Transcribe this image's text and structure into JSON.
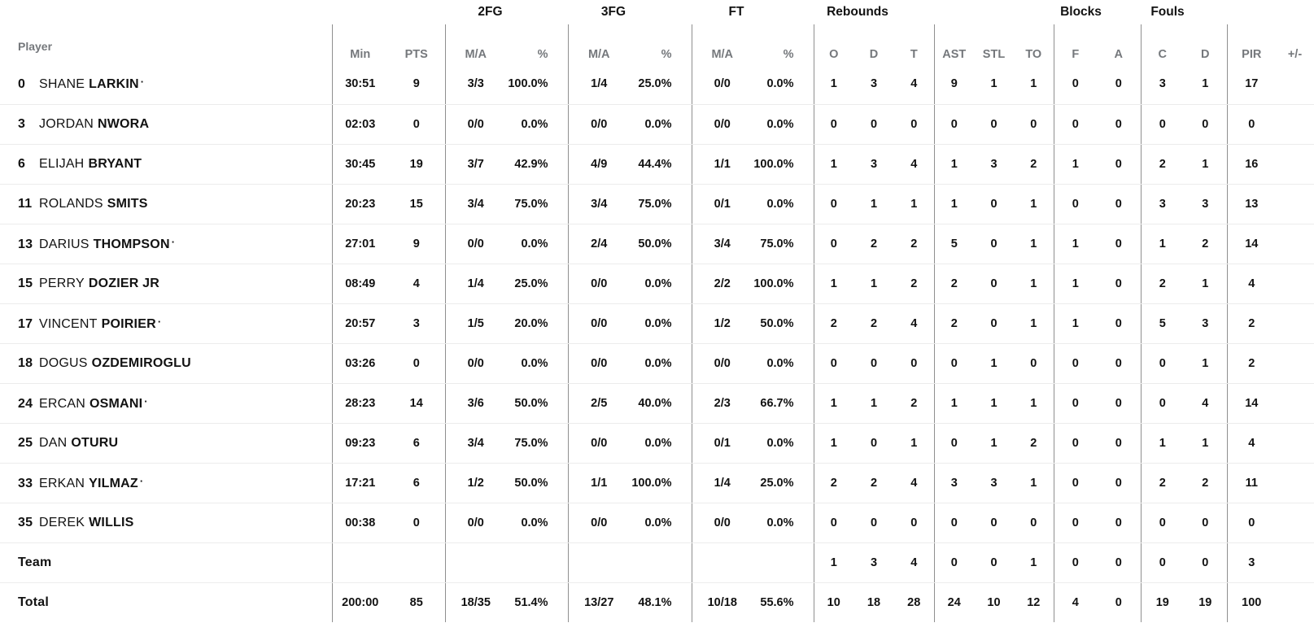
{
  "colors": {
    "text": "#121212",
    "muted_header": "#75787c",
    "group_divider": "#8f8f8f",
    "row_separator": "#ececec",
    "background": "#ffffff"
  },
  "header": {
    "player": "Player",
    "groups": {
      "fg2": "2FG",
      "fg3": "3FG",
      "ft": "FT",
      "rebounds": "Rebounds",
      "blocks": "Blocks",
      "fouls": "Fouls"
    },
    "cols": {
      "min": "Min",
      "pts": "PTS",
      "ma": "M/A",
      "pct": "%",
      "reb_o": "O",
      "reb_d": "D",
      "reb_t": "T",
      "ast": "AST",
      "stl": "STL",
      "to": "TO",
      "blk_f": "F",
      "blk_a": "A",
      "foul_c": "C",
      "foul_d": "D",
      "pir": "PIR",
      "plus_minus": "+/-"
    }
  },
  "rows": [
    {
      "number": "0",
      "first": "SHANE",
      "last": "LARKIN",
      "starter": true,
      "min": "30:51",
      "pts": "9",
      "fg2_ma": "3/3",
      "fg2_pct": "100.0%",
      "fg3_ma": "1/4",
      "fg3_pct": "25.0%",
      "ft_ma": "0/0",
      "ft_pct": "0.0%",
      "reb_o": "1",
      "reb_d": "3",
      "reb_t": "4",
      "ast": "9",
      "stl": "1",
      "to": "1",
      "blk_f": "0",
      "blk_a": "0",
      "foul_c": "3",
      "foul_d": "1",
      "pir": "17",
      "plus_minus": ""
    },
    {
      "number": "3",
      "first": "JORDAN",
      "last": "NWORA",
      "starter": false,
      "min": "02:03",
      "pts": "0",
      "fg2_ma": "0/0",
      "fg2_pct": "0.0%",
      "fg3_ma": "0/0",
      "fg3_pct": "0.0%",
      "ft_ma": "0/0",
      "ft_pct": "0.0%",
      "reb_o": "0",
      "reb_d": "0",
      "reb_t": "0",
      "ast": "0",
      "stl": "0",
      "to": "0",
      "blk_f": "0",
      "blk_a": "0",
      "foul_c": "0",
      "foul_d": "0",
      "pir": "0",
      "plus_minus": ""
    },
    {
      "number": "6",
      "first": "ELIJAH",
      "last": "BRYANT",
      "starter": false,
      "min": "30:45",
      "pts": "19",
      "fg2_ma": "3/7",
      "fg2_pct": "42.9%",
      "fg3_ma": "4/9",
      "fg3_pct": "44.4%",
      "ft_ma": "1/1",
      "ft_pct": "100.0%",
      "reb_o": "1",
      "reb_d": "3",
      "reb_t": "4",
      "ast": "1",
      "stl": "3",
      "to": "2",
      "blk_f": "1",
      "blk_a": "0",
      "foul_c": "2",
      "foul_d": "1",
      "pir": "16",
      "plus_minus": ""
    },
    {
      "number": "11",
      "first": "ROLANDS",
      "last": "SMITS",
      "starter": false,
      "min": "20:23",
      "pts": "15",
      "fg2_ma": "3/4",
      "fg2_pct": "75.0%",
      "fg3_ma": "3/4",
      "fg3_pct": "75.0%",
      "ft_ma": "0/1",
      "ft_pct": "0.0%",
      "reb_o": "0",
      "reb_d": "1",
      "reb_t": "1",
      "ast": "1",
      "stl": "0",
      "to": "1",
      "blk_f": "0",
      "blk_a": "0",
      "foul_c": "3",
      "foul_d": "3",
      "pir": "13",
      "plus_minus": ""
    },
    {
      "number": "13",
      "first": "DARIUS",
      "last": "THOMPSON",
      "starter": true,
      "min": "27:01",
      "pts": "9",
      "fg2_ma": "0/0",
      "fg2_pct": "0.0%",
      "fg3_ma": "2/4",
      "fg3_pct": "50.0%",
      "ft_ma": "3/4",
      "ft_pct": "75.0%",
      "reb_o": "0",
      "reb_d": "2",
      "reb_t": "2",
      "ast": "5",
      "stl": "0",
      "to": "1",
      "blk_f": "1",
      "blk_a": "0",
      "foul_c": "1",
      "foul_d": "2",
      "pir": "14",
      "plus_minus": ""
    },
    {
      "number": "15",
      "first": "PERRY",
      "last": "DOZIER JR",
      "starter": false,
      "min": "08:49",
      "pts": "4",
      "fg2_ma": "1/4",
      "fg2_pct": "25.0%",
      "fg3_ma": "0/0",
      "fg3_pct": "0.0%",
      "ft_ma": "2/2",
      "ft_pct": "100.0%",
      "reb_o": "1",
      "reb_d": "1",
      "reb_t": "2",
      "ast": "2",
      "stl": "0",
      "to": "1",
      "blk_f": "1",
      "blk_a": "0",
      "foul_c": "2",
      "foul_d": "1",
      "pir": "4",
      "plus_minus": ""
    },
    {
      "number": "17",
      "first": "VINCENT",
      "last": "POIRIER",
      "starter": true,
      "min": "20:57",
      "pts": "3",
      "fg2_ma": "1/5",
      "fg2_pct": "20.0%",
      "fg3_ma": "0/0",
      "fg3_pct": "0.0%",
      "ft_ma": "1/2",
      "ft_pct": "50.0%",
      "reb_o": "2",
      "reb_d": "2",
      "reb_t": "4",
      "ast": "2",
      "stl": "0",
      "to": "1",
      "blk_f": "1",
      "blk_a": "0",
      "foul_c": "5",
      "foul_d": "3",
      "pir": "2",
      "plus_minus": ""
    },
    {
      "number": "18",
      "first": "DOGUS",
      "last": "OZDEMIROGLU",
      "starter": false,
      "min": "03:26",
      "pts": "0",
      "fg2_ma": "0/0",
      "fg2_pct": "0.0%",
      "fg3_ma": "0/0",
      "fg3_pct": "0.0%",
      "ft_ma": "0/0",
      "ft_pct": "0.0%",
      "reb_o": "0",
      "reb_d": "0",
      "reb_t": "0",
      "ast": "0",
      "stl": "1",
      "to": "0",
      "blk_f": "0",
      "blk_a": "0",
      "foul_c": "0",
      "foul_d": "1",
      "pir": "2",
      "plus_minus": ""
    },
    {
      "number": "24",
      "first": "ERCAN",
      "last": "OSMANI",
      "starter": true,
      "min": "28:23",
      "pts": "14",
      "fg2_ma": "3/6",
      "fg2_pct": "50.0%",
      "fg3_ma": "2/5",
      "fg3_pct": "40.0%",
      "ft_ma": "2/3",
      "ft_pct": "66.7%",
      "reb_o": "1",
      "reb_d": "1",
      "reb_t": "2",
      "ast": "1",
      "stl": "1",
      "to": "1",
      "blk_f": "0",
      "blk_a": "0",
      "foul_c": "0",
      "foul_d": "4",
      "pir": "14",
      "plus_minus": ""
    },
    {
      "number": "25",
      "first": "DAN",
      "last": "OTURU",
      "starter": false,
      "min": "09:23",
      "pts": "6",
      "fg2_ma": "3/4",
      "fg2_pct": "75.0%",
      "fg3_ma": "0/0",
      "fg3_pct": "0.0%",
      "ft_ma": "0/1",
      "ft_pct": "0.0%",
      "reb_o": "1",
      "reb_d": "0",
      "reb_t": "1",
      "ast": "0",
      "stl": "1",
      "to": "2",
      "blk_f": "0",
      "blk_a": "0",
      "foul_c": "1",
      "foul_d": "1",
      "pir": "4",
      "plus_minus": ""
    },
    {
      "number": "33",
      "first": "ERKAN",
      "last": "YILMAZ",
      "starter": true,
      "min": "17:21",
      "pts": "6",
      "fg2_ma": "1/2",
      "fg2_pct": "50.0%",
      "fg3_ma": "1/1",
      "fg3_pct": "100.0%",
      "ft_ma": "1/4",
      "ft_pct": "25.0%",
      "reb_o": "2",
      "reb_d": "2",
      "reb_t": "4",
      "ast": "3",
      "stl": "3",
      "to": "1",
      "blk_f": "0",
      "blk_a": "0",
      "foul_c": "2",
      "foul_d": "2",
      "pir": "11",
      "plus_minus": ""
    },
    {
      "number": "35",
      "first": "DEREK",
      "last": "WILLIS",
      "starter": false,
      "min": "00:38",
      "pts": "0",
      "fg2_ma": "0/0",
      "fg2_pct": "0.0%",
      "fg3_ma": "0/0",
      "fg3_pct": "0.0%",
      "ft_ma": "0/0",
      "ft_pct": "0.0%",
      "reb_o": "0",
      "reb_d": "0",
      "reb_t": "0",
      "ast": "0",
      "stl": "0",
      "to": "0",
      "blk_f": "0",
      "blk_a": "0",
      "foul_c": "0",
      "foul_d": "0",
      "pir": "0",
      "plus_minus": ""
    }
  ],
  "team_row": {
    "label": "Team",
    "min": "",
    "pts": "",
    "fg2_ma": "",
    "fg2_pct": "",
    "fg3_ma": "",
    "fg3_pct": "",
    "ft_ma": "",
    "ft_pct": "",
    "reb_o": "1",
    "reb_d": "3",
    "reb_t": "4",
    "ast": "0",
    "stl": "0",
    "to": "1",
    "blk_f": "0",
    "blk_a": "0",
    "foul_c": "0",
    "foul_d": "0",
    "pir": "3",
    "plus_minus": ""
  },
  "total_row": {
    "label": "Total",
    "min": "200:00",
    "pts": "85",
    "fg2_ma": "18/35",
    "fg2_pct": "51.4%",
    "fg3_ma": "13/27",
    "fg3_pct": "48.1%",
    "ft_ma": "10/18",
    "ft_pct": "55.6%",
    "reb_o": "10",
    "reb_d": "18",
    "reb_t": "28",
    "ast": "24",
    "stl": "10",
    "to": "12",
    "blk_f": "4",
    "blk_a": "0",
    "foul_c": "19",
    "foul_d": "19",
    "pir": "100",
    "plus_minus": ""
  },
  "starter_dot": "·"
}
